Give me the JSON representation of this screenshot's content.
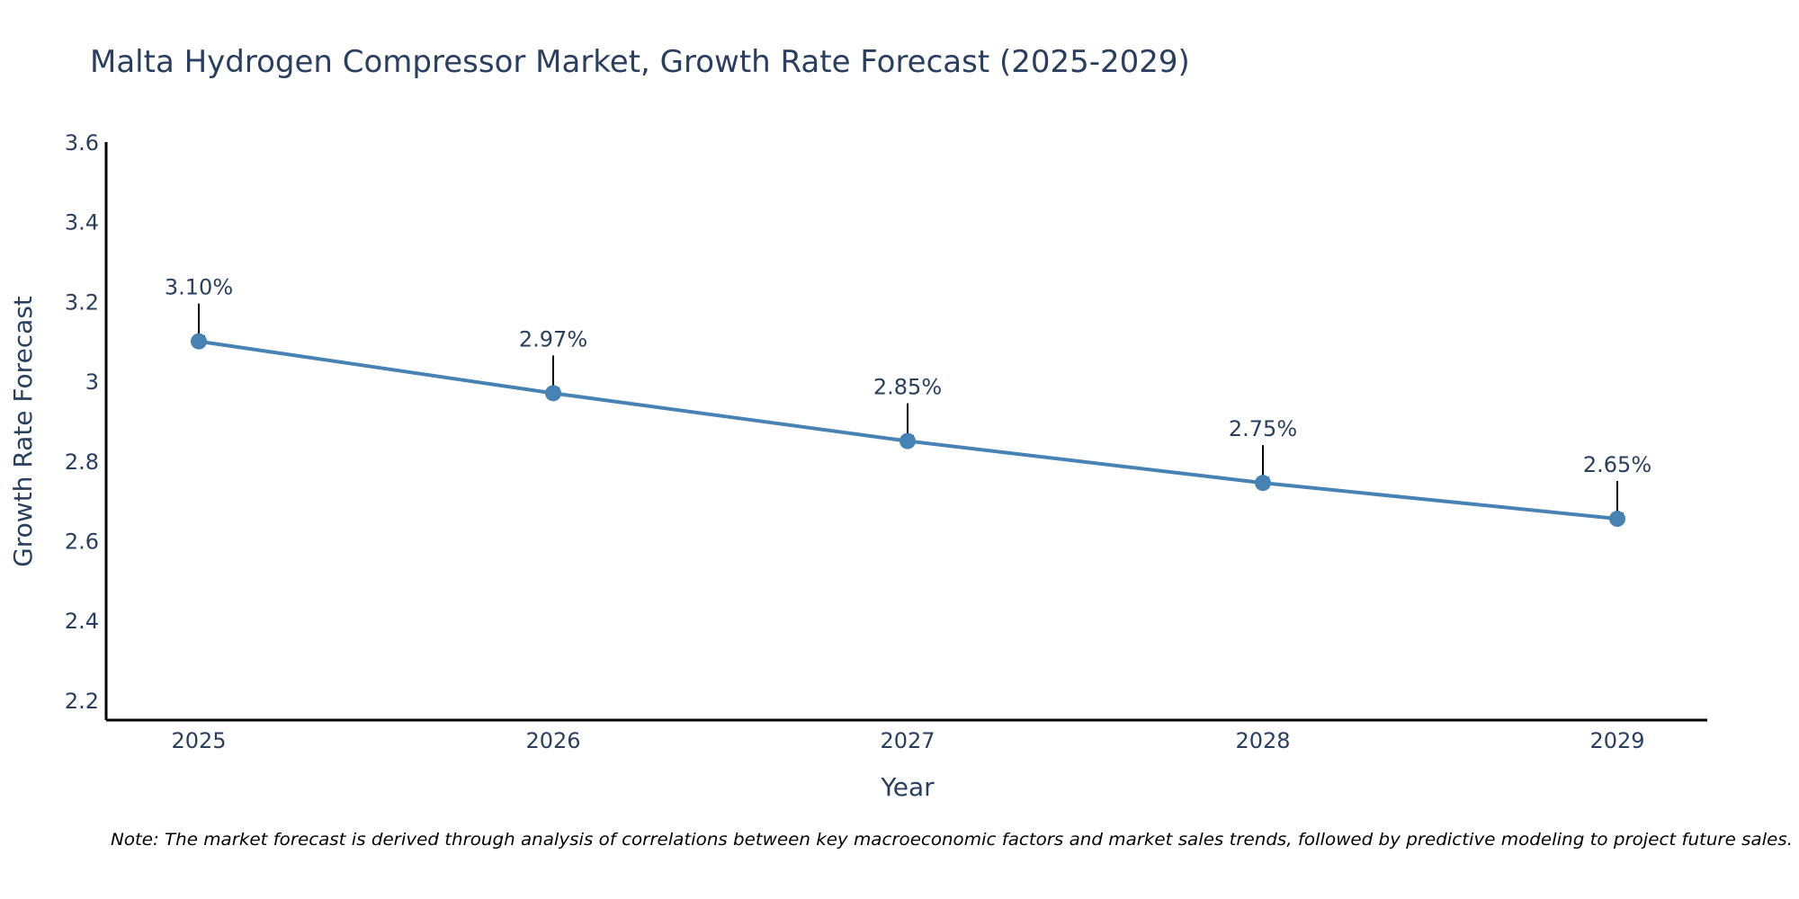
{
  "chart_data": {
    "type": "line",
    "title": "Malta Hydrogen Compressor Market, Growth Rate Forecast (2025-2029)",
    "xlabel": "Year",
    "ylabel": "Growth Rate Forecast",
    "categories": [
      "2025",
      "2026",
      "2027",
      "2028",
      "2029"
    ],
    "x": [
      2025,
      2026,
      2027,
      2028,
      2029
    ],
    "values": [
      3.1,
      2.97,
      2.85,
      2.745,
      2.655
    ],
    "data_labels": [
      "3.10%",
      "2.97%",
      "2.85%",
      "2.75%",
      "2.65%"
    ],
    "ylim": [
      2.15,
      3.6
    ],
    "yticks": [
      2.2,
      2.4,
      2.6,
      2.8,
      3,
      3.2,
      3.4,
      3.6
    ],
    "ytick_labels": [
      "2.2",
      "2.4",
      "2.6",
      "2.8",
      "3",
      "3.2",
      "3.4",
      "3.6"
    ],
    "grid": false,
    "legend": "none",
    "line_color": "#4682b4",
    "marker_color": "#4682b4",
    "arrow_color": "#000000",
    "note": "Note: The market forecast is derived through analysis of correlations between key macroeconomic factors and market sales trends, followed by predictive modeling to project future sales."
  }
}
